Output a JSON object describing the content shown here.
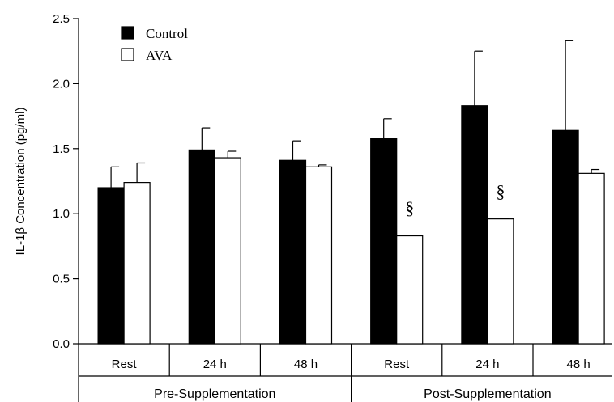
{
  "chart_data": {
    "type": "bar",
    "ylabel": "IL-1β Concentration (pg/ml)",
    "xlabel": "",
    "ylim": [
      0,
      2.5
    ],
    "yticks": [
      "0.0",
      "0.5",
      "1.0",
      "1.5",
      "2.0",
      "2.5"
    ],
    "grid": false,
    "legend_position": "top-left",
    "categories": [
      "Rest",
      "24 h",
      "48 h",
      "Rest",
      "24 h",
      "48 h"
    ],
    "groups": [
      {
        "label": "Pre-Supplementation",
        "span": [
          0,
          2
        ]
      },
      {
        "label": "Post-Supplementation",
        "span": [
          3,
          5
        ]
      }
    ],
    "series": [
      {
        "name": "Control",
        "color": "#000000",
        "values": [
          1.2,
          1.49,
          1.41,
          1.58,
          1.83,
          1.64
        ],
        "errors": [
          0.16,
          0.17,
          0.15,
          0.15,
          0.42,
          0.69
        ]
      },
      {
        "name": "AVA",
        "color": "#ffffff",
        "values": [
          1.24,
          1.43,
          1.36,
          0.83,
          0.96,
          1.31
        ],
        "errors": [
          0.15,
          0.05,
          0.015,
          0.005,
          0.005,
          0.03
        ]
      }
    ],
    "annotations": [
      {
        "text": "§",
        "category_index": 3,
        "series": "AVA"
      },
      {
        "text": "§",
        "category_index": 4,
        "series": "AVA"
      }
    ]
  }
}
